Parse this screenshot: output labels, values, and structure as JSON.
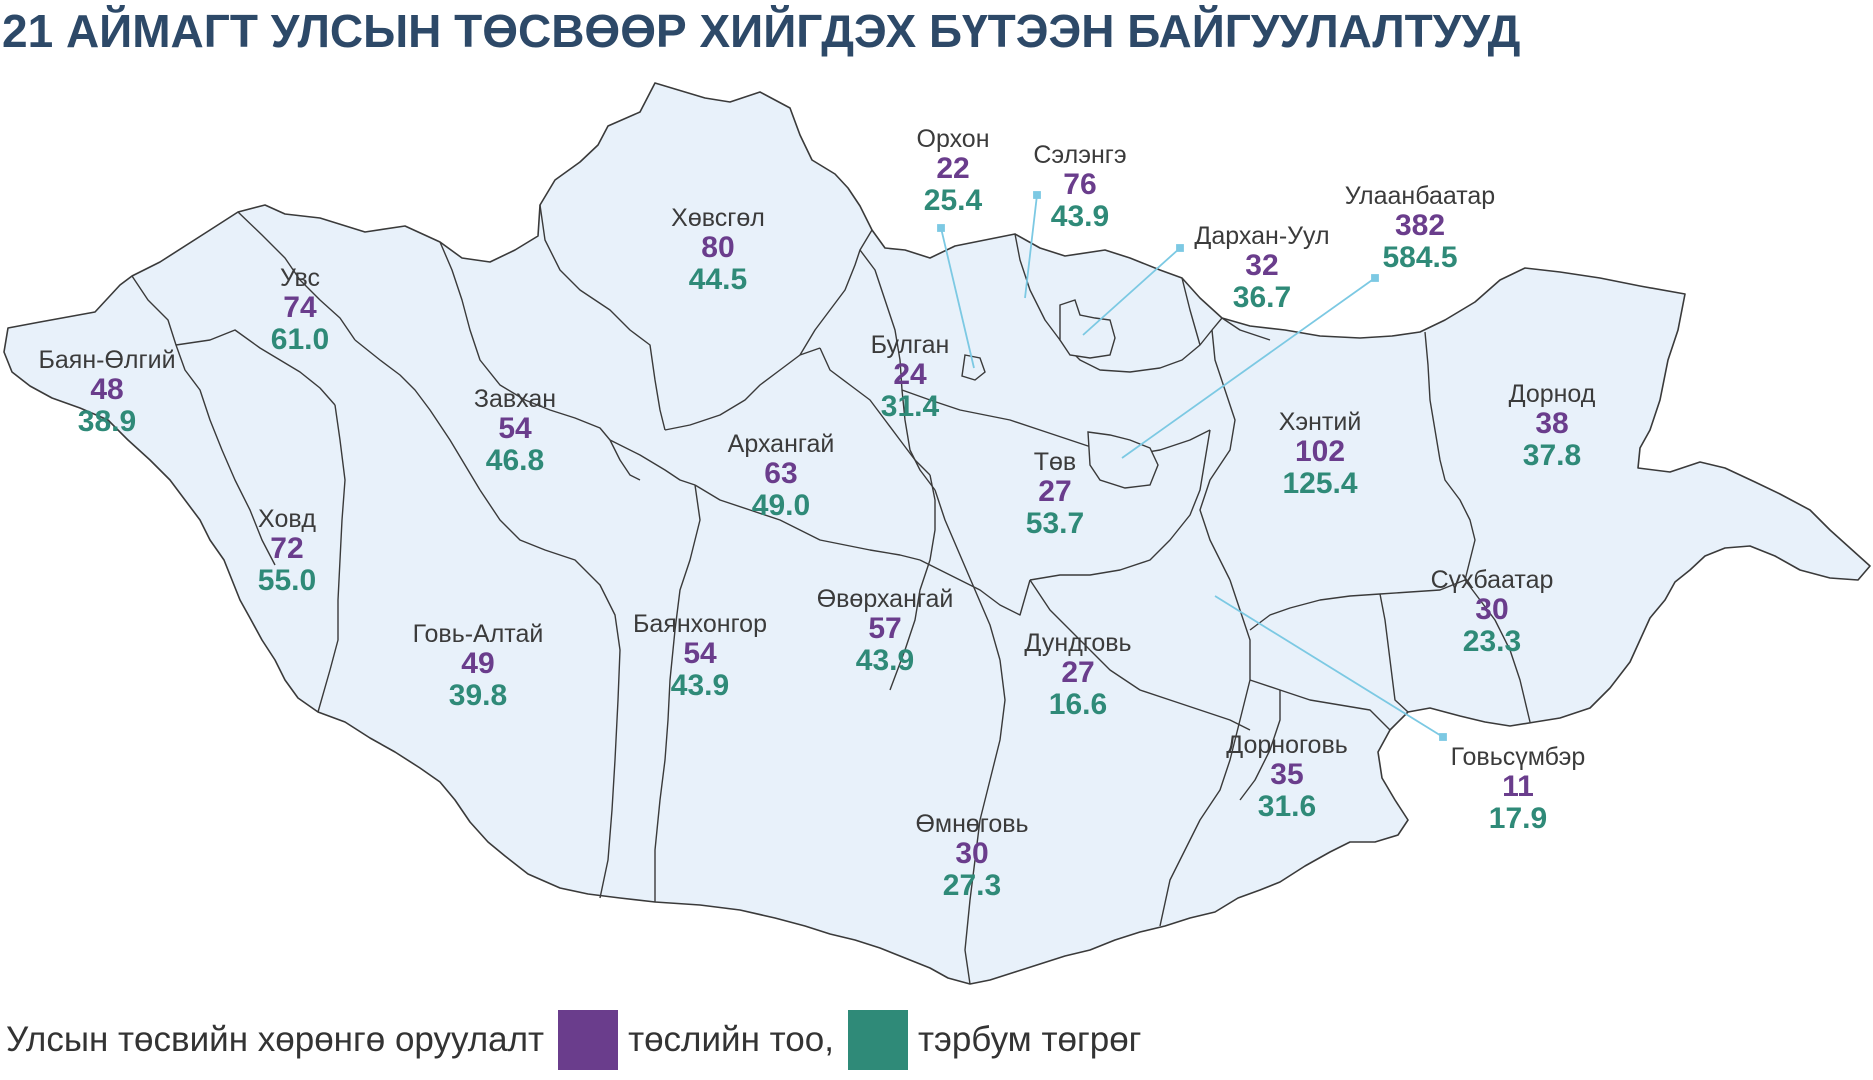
{
  "title": "21 АЙМАГТ УЛСЫН ТӨСВӨӨР ХИЙГДЭХ БҮТЭЭН БАЙГУУЛАЛТУУД",
  "colors": {
    "title": "#2d4968",
    "count": "#6a3d8c",
    "amount": "#2f8a78",
    "land": "#e8f1fa",
    "border": "#3a3a3a",
    "leader": "#7cc9e3"
  },
  "regions": [
    {
      "name": "Баян-Өлгий",
      "count": "48",
      "amount": "38.9"
    },
    {
      "name": "Увс",
      "count": "74",
      "amount": "61.0"
    },
    {
      "name": "Ховд",
      "count": "72",
      "amount": "55.0"
    },
    {
      "name": "Завхан",
      "count": "54",
      "amount": "46.8"
    },
    {
      "name": "Хөвсгөл",
      "count": "80",
      "amount": "44.5"
    },
    {
      "name": "Говь-Алтай",
      "count": "49",
      "amount": "39.8"
    },
    {
      "name": "Баянхонгор",
      "count": "54",
      "amount": "43.9"
    },
    {
      "name": "Архангай",
      "count": "63",
      "amount": "49.0"
    },
    {
      "name": "Булган",
      "count": "24",
      "amount": "31.4"
    },
    {
      "name": "Өвөрхангай",
      "count": "57",
      "amount": "43.9"
    },
    {
      "name": "Орхон",
      "count": "22",
      "amount": "25.4"
    },
    {
      "name": "Сэлэнгэ",
      "count": "76",
      "amount": "43.9"
    },
    {
      "name": "Дархан-Уул",
      "count": "32",
      "amount": "36.7"
    },
    {
      "name": "Улаанбаатар",
      "count": "382",
      "amount": "584.5"
    },
    {
      "name": "Төв",
      "count": "27",
      "amount": "53.7"
    },
    {
      "name": "Хэнтий",
      "count": "102",
      "amount": "125.4"
    },
    {
      "name": "Дорнод",
      "count": "38",
      "amount": "37.8"
    },
    {
      "name": "Сүхбаатар",
      "count": "30",
      "amount": "23.3"
    },
    {
      "name": "Дундговь",
      "count": "27",
      "amount": "16.6"
    },
    {
      "name": "Өмнөговь",
      "count": "30",
      "amount": "27.3"
    },
    {
      "name": "Дорноговь",
      "count": "35",
      "amount": "31.6"
    },
    {
      "name": "Говьсүмбэр",
      "count": "11",
      "amount": "17.9"
    }
  ],
  "legend": {
    "label": "Улсын төсвийн хөрөнгө оруулалт",
    "count_label": "төслийн тоо,",
    "amount_label": "тэрбум төгрөг"
  }
}
